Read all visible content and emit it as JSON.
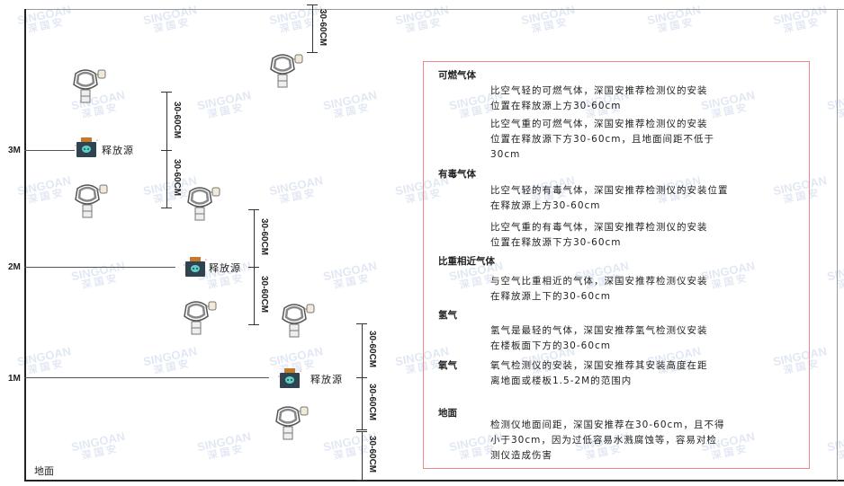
{
  "watermark": {
    "brand": "SINGOAN",
    "cn": "深国安"
  },
  "levels": [
    "3M",
    "2M",
    "1M"
  ],
  "ground_label": "地面",
  "source_label": "释放源",
  "dimension_label": "30-60CM",
  "legend": {
    "sections": [
      {
        "heading": "可燃气体",
        "paragraphs": [
          [
            "比空气轻的可燃气体，深国安推荐检测仪的安装",
            "位置在释放源上方30-60cm"
          ],
          [
            "比空气重的可燃气体，深国安推荐检测仪的安装",
            "位置在释放源下方30-60cm，且地面间距不低于",
            "30cm"
          ]
        ]
      },
      {
        "heading": "有毒气体",
        "paragraphs": [
          [
            "比空气轻的有毒气体，深国安推荐检测仪的安装位置",
            "在释放源上方30-60cm"
          ],
          [
            "比空气重的有毒气体，深国安推荐检测仪的安装",
            "位置在释放源下方30-60cm"
          ]
        ]
      },
      {
        "heading": "比重相近气体",
        "paragraphs": [
          [
            "与空气比重相近的气体，深国安推荐检测仪安装",
            "在释放源上下的30-60cm"
          ]
        ]
      },
      {
        "heading": "氢气",
        "paragraphs": [
          [
            "氢气是最轻的气体，深国安推荐氢气检测仪安装",
            "在楼板面下方的30-60cm"
          ]
        ]
      },
      {
        "heading": "氧气",
        "paragraphs": [
          [
            "氧气检测仪的安装，深国安推荐其安装高度在距",
            "离地面或楼板1.5-2M的范围内"
          ]
        ]
      },
      {
        "heading": "地面",
        "paragraphs": [
          [
            "检测仪地面间距，深国安推荐在30-60cm，且不得",
            "小于30cm，因为过低容易水溅腐蚀等，容易对检",
            "测仪造成伤害"
          ]
        ]
      }
    ]
  }
}
